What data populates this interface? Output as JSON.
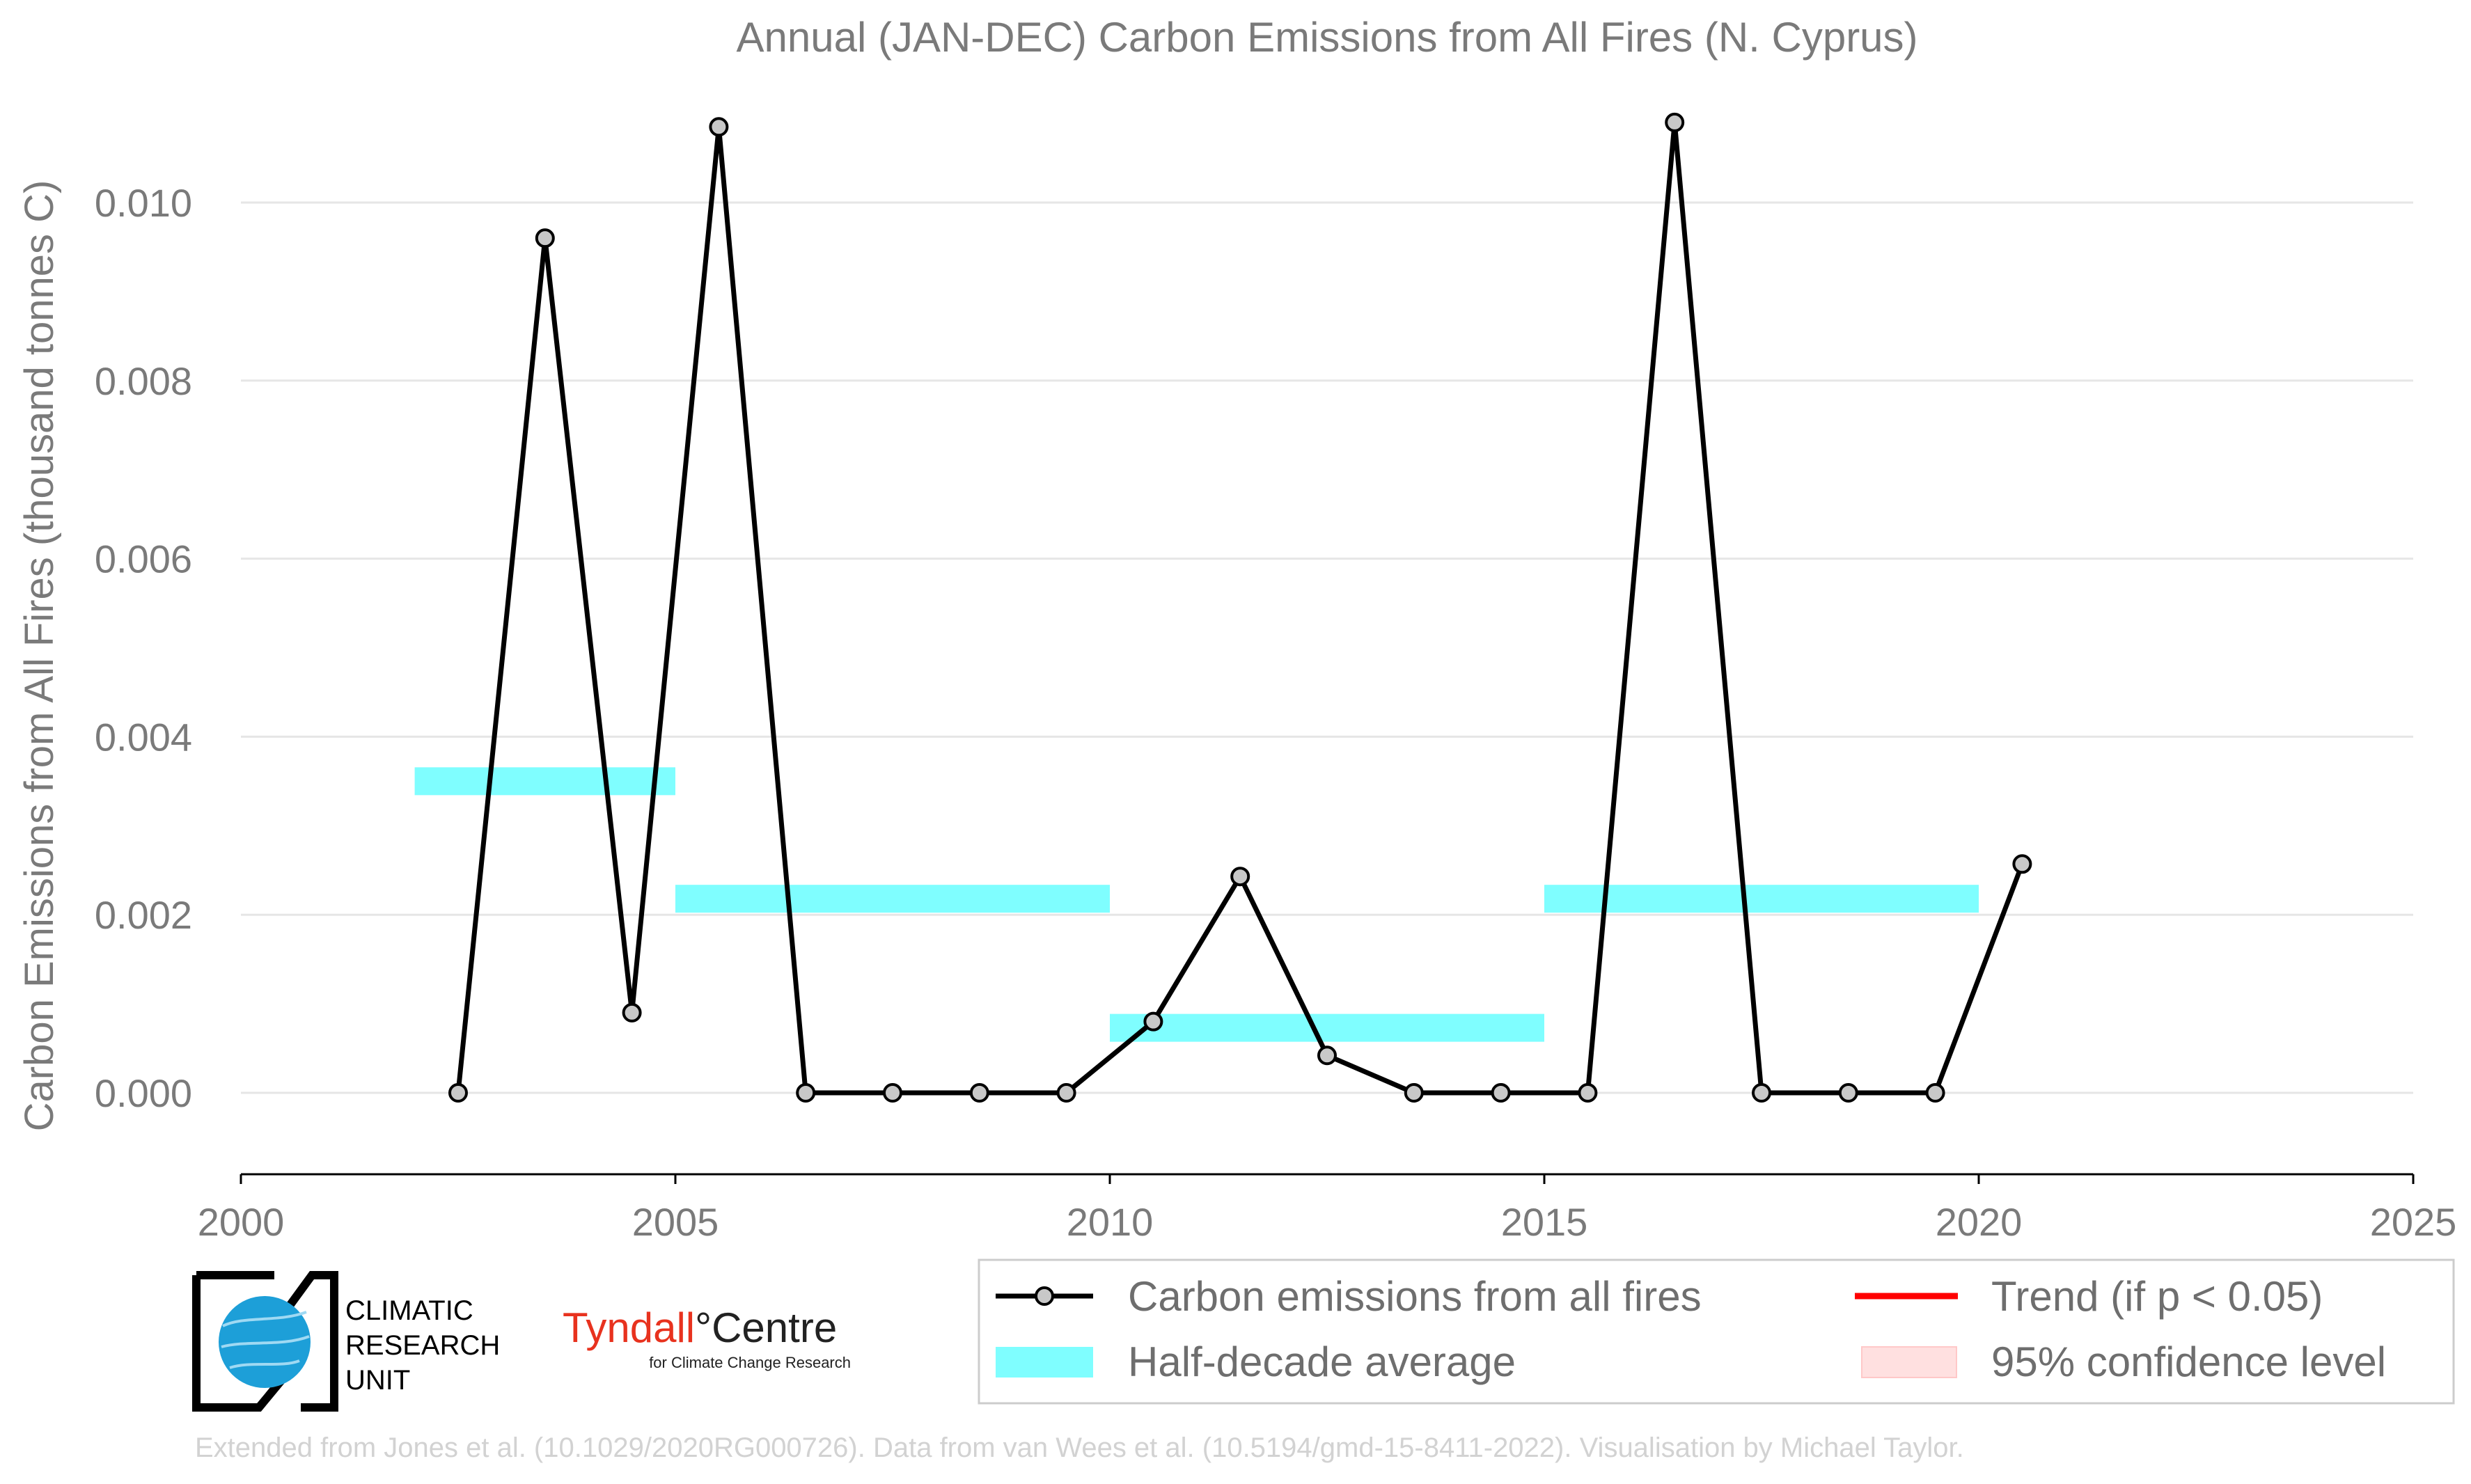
{
  "chart_data": {
    "type": "line",
    "title": "Annual (JAN-DEC) Carbon Emissions from All Fires (N. Cyprus)",
    "ylabel": "Carbon Emissions from All Fires (thousand tonnes C)",
    "xlabel": "",
    "xlim": [
      2000,
      2025
    ],
    "ylim": [
      -0.00078,
      0.0113
    ],
    "x_ticks": [
      2000,
      2005,
      2010,
      2015,
      2020,
      2025
    ],
    "y_ticks": [
      0.0,
      0.002,
      0.004,
      0.006,
      0.008,
      0.01
    ],
    "y_tick_labels": [
      "0.000",
      "0.002",
      "0.004",
      "0.006",
      "0.008",
      "0.010"
    ],
    "grid": "horizontal",
    "series": [
      {
        "name": "Carbon emissions from all fires",
        "style": "line-with-markers",
        "color": "#000000",
        "marker_color": "#c8c8c8",
        "x": [
          2002.5,
          2003.5,
          2004.5,
          2005.5,
          2006.5,
          2007.5,
          2008.5,
          2009.5,
          2010.5,
          2011.5,
          2012.5,
          2013.5,
          2014.5,
          2015.5,
          2016.5,
          2017.5,
          2018.5,
          2019.5,
          2020.5
        ],
        "y": [
          0.0,
          0.0096,
          0.0009,
          0.01085,
          0.0,
          0.0,
          0.0,
          0.0,
          0.0008,
          0.00243,
          0.00042,
          0.0,
          0.0,
          0.0,
          0.0109,
          0.0,
          0.0,
          0.0,
          0.00257
        ]
      },
      {
        "name": "Half-decade average",
        "style": "band",
        "color": "#7ffeff",
        "segments": [
          {
            "x0": 2002,
            "x1": 2005,
            "y": 0.0035
          },
          {
            "x0": 2005,
            "x1": 2010,
            "y": 0.00218
          },
          {
            "x0": 2010,
            "x1": 2015,
            "y": 0.00073
          },
          {
            "x0": 2015,
            "x1": 2020,
            "y": 0.00218
          }
        ]
      }
    ],
    "legend": {
      "position": "bottom-right",
      "entries": [
        {
          "label": "Carbon emissions from all fires",
          "kind": "line-marker",
          "color": "#000000"
        },
        {
          "label": "Trend (if p < 0.05)",
          "kind": "line",
          "color": "#ff0000"
        },
        {
          "label": "Half-decade average",
          "kind": "band",
          "color": "#7ffeff"
        },
        {
          "label": "95% confidence level",
          "kind": "band",
          "color": "#ffe0e0"
        }
      ]
    }
  },
  "logos": {
    "cru": {
      "lines": [
        "CLIMATIC",
        "RESEARCH",
        "UNIT"
      ]
    },
    "tyndall": {
      "name": "Tyndall",
      "suffix": "°Centre",
      "sub": "for Climate Change Research",
      "accent": "#e8321e"
    }
  },
  "footer": "Extended from Jones et al. (10.1029/2020RG000726). Data from van Wees et al. (10.5194/gmd-15-8411-2022). Visualisation by Michael Taylor."
}
